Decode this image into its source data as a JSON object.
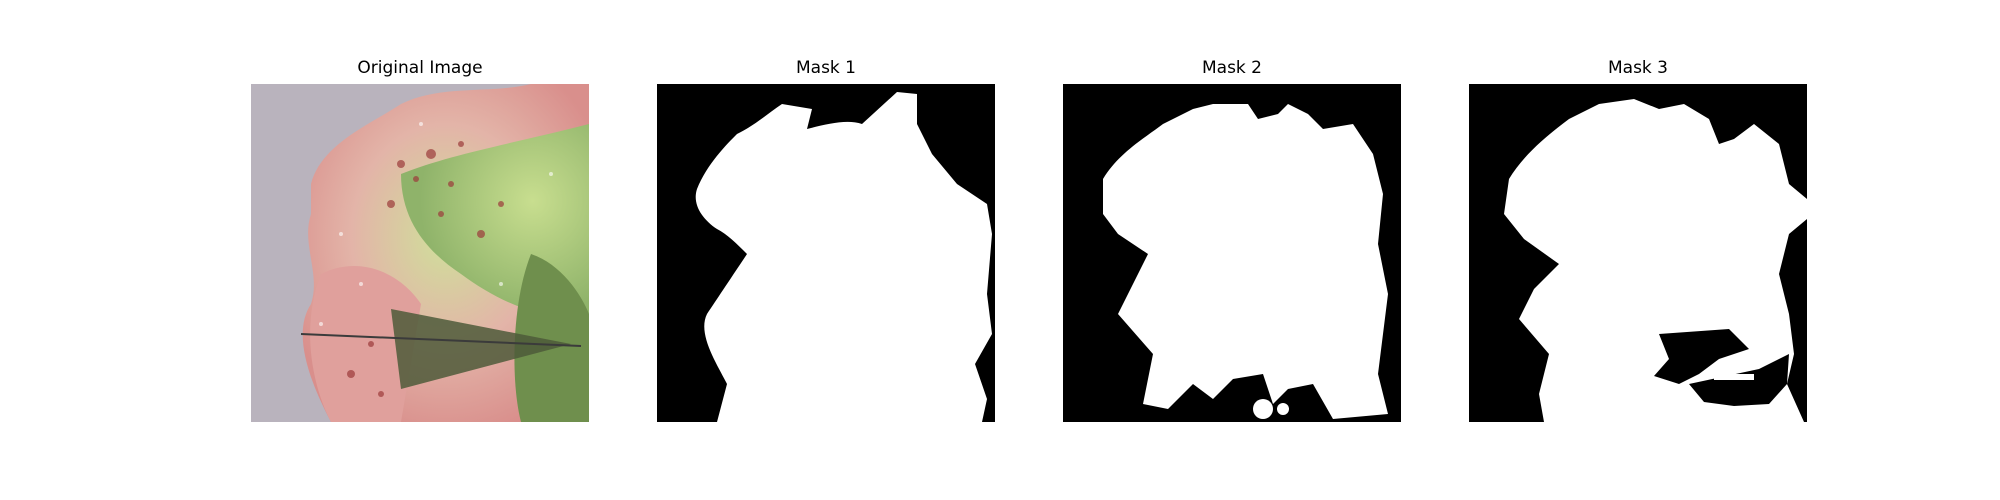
{
  "figure": {
    "panels": [
      {
        "title": "Original Image",
        "kind": "photo"
      },
      {
        "title": "Mask 1",
        "kind": "mask"
      },
      {
        "title": "Mask 2",
        "kind": "mask"
      },
      {
        "title": "Mask 3",
        "kind": "mask"
      }
    ]
  },
  "colors": {
    "background": "#ffffff",
    "mask_foreground": "#ffffff",
    "mask_background": "#000000",
    "photo_backdrop": "#b9b3bd",
    "leaf_pink": "#e6a7a4",
    "leaf_green": "#a8c77a",
    "shadow_triangle": "#4d5a3a"
  }
}
